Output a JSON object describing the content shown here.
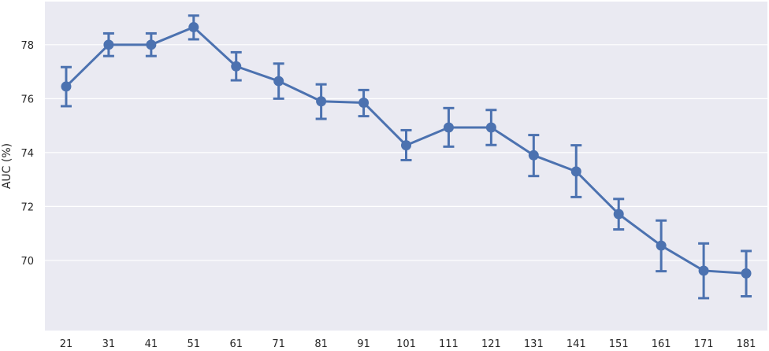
{
  "chart_data": {
    "type": "line",
    "title": "",
    "xlabel": "",
    "ylabel": "AUC (%)",
    "categories": [
      "21",
      "31",
      "41",
      "51",
      "61",
      "71",
      "81",
      "91",
      "101",
      "111",
      "121",
      "131",
      "141",
      "151",
      "161",
      "171",
      "181"
    ],
    "series": [
      {
        "values": [
          76.45,
          78.0,
          78.0,
          78.65,
          77.2,
          76.65,
          75.9,
          75.85,
          74.27,
          74.93,
          74.93,
          73.9,
          73.3,
          71.72,
          70.55,
          69.62,
          69.52
        ],
        "err_low": [
          75.72,
          77.58,
          77.58,
          78.2,
          76.68,
          76.0,
          75.25,
          75.35,
          73.72,
          74.22,
          74.28,
          73.13,
          72.35,
          71.15,
          69.6,
          68.6,
          68.67
        ],
        "err_high": [
          77.17,
          78.42,
          78.42,
          79.08,
          77.72,
          77.3,
          76.53,
          76.32,
          74.83,
          75.65,
          75.58,
          74.65,
          74.27,
          72.28,
          71.48,
          70.63,
          70.35
        ]
      }
    ],
    "yticks": [
      70,
      72,
      74,
      76,
      78
    ],
    "ylim": [
      67.4,
      79.6
    ],
    "grid": true,
    "legend": "none",
    "colors": {
      "line": "#4C72B0",
      "background": "#EAEAF2",
      "grid": "#ffffff"
    }
  }
}
